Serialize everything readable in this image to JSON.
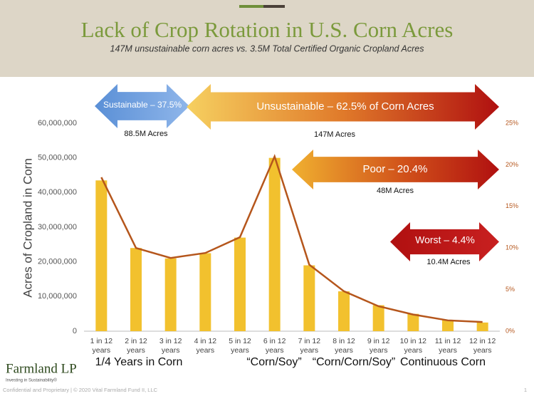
{
  "header": {
    "title": "Lack of Crop Rotation in U.S. Corn Acres",
    "subtitle": "147M unsustainable corn acres vs. 3.5M Total Certified Organic Cropland Acres"
  },
  "chart_data": {
    "type": "bar",
    "y_label": "Acres of Cropland in Corn",
    "categories": [
      "1 in 12 years",
      "2 in 12 years",
      "3 in 12 years",
      "4 in 12 years",
      "5 in 12 years",
      "6 in 12 years",
      "7 in 12 years",
      "8 in 12 years",
      "9 in 12 years",
      "10 in 12 years",
      "11 in 12 years",
      "12 in 12 years"
    ],
    "series": [
      {
        "color": "#f2c12e",
        "values": [
          43500000,
          24000000,
          21000000,
          22500000,
          27000000,
          50000000,
          19000000,
          11500000,
          7500000,
          5000000,
          3200000,
          2500000
        ]
      },
      {
        "type": "line",
        "axis": "y2",
        "color": "#b5561c",
        "values": [
          18.5,
          10,
          8.8,
          9.4,
          11.3,
          21,
          8,
          4.8,
          3,
          2,
          1.3,
          1.1
        ]
      }
    ],
    "ylim": [
      0,
      60000000
    ],
    "yticks": [
      0,
      {
        "value": 10000000,
        "label": "10,000,000"
      },
      {
        "value": 20000000,
        "label": "20,000,000"
      },
      {
        "value": 30000000,
        "label": "30,000,000"
      },
      {
        "value": 40000000,
        "label": "40,000,000"
      },
      {
        "value": 50000000,
        "label": "50,000,000"
      },
      {
        "value": 60000000,
        "label": "60,000,000"
      }
    ],
    "y2lim": [
      0,
      25
    ],
    "y2ticks": [
      {
        "value": 0,
        "label": "0%"
      },
      {
        "value": 5,
        "label": "5%"
      },
      {
        "value": 10,
        "label": "10%"
      },
      {
        "value": 15,
        "label": "15%"
      },
      {
        "value": 20,
        "label": "20%"
      },
      {
        "value": 25,
        "label": "25%"
      }
    ],
    "annotations": [
      {
        "text": "Sustainable – 37.5%",
        "sub": "88.5M Acres"
      },
      {
        "text": "Unsustainable – 62.5% of Corn Acres",
        "sub": "147M Acres"
      },
      {
        "text": "Poor – 20.4%",
        "sub": "48M Acres"
      },
      {
        "text": "Worst – 4.4%",
        "sub": "10.4M Acres"
      }
    ],
    "group_labels": [
      "1/4 Years in Corn",
      "“Corn/Soy”",
      "“Corn/Corn/Soy”",
      "Continuous Corn"
    ]
  },
  "footer": {
    "company": "Farmland LP",
    "tagline": "Investing in Sustainability®",
    "notice": "Confidential and Proprietary | © 2020 Vital Farmland Fund II, LLC",
    "page": "1"
  }
}
